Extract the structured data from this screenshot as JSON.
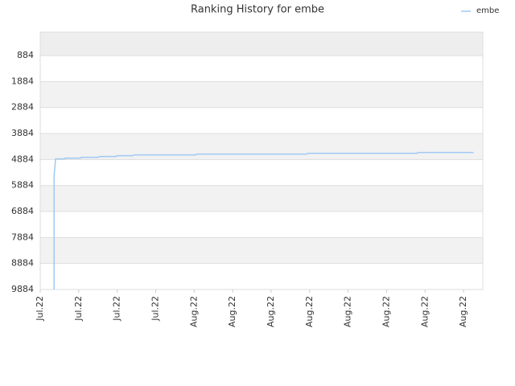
{
  "chart_data": {
    "type": "line",
    "title": "Ranking History for embe",
    "x": [
      0.36,
      0.36,
      0.4,
      0.63,
      0.65,
      1.05,
      1.07,
      1.51,
      1.53,
      1.97,
      1.99,
      2.41,
      2.43,
      4.04,
      4.06,
      6.92,
      6.95,
      9.79,
      9.81,
      11.26
    ],
    "series": [
      {
        "name": "embe",
        "color": "#9fc9f3",
        "values": [
          9884,
          5511,
          4859,
          4859,
          4828,
          4828,
          4797,
          4797,
          4766,
          4766,
          4735,
          4735,
          4704,
          4704,
          4673,
          4673,
          4642,
          4642,
          4611,
          4611
        ]
      }
    ],
    "xlim": [
      0,
      11.5
    ],
    "xticks": [
      {
        "value": 0,
        "label": "Jul.22"
      },
      {
        "value": 1,
        "label": "Jul.22"
      },
      {
        "value": 2,
        "label": "Jul.22"
      },
      {
        "value": 3,
        "label": "Jul.22"
      },
      {
        "value": 4,
        "label": "Aug.22"
      },
      {
        "value": 5,
        "label": "Aug.22"
      },
      {
        "value": 6,
        "label": "Aug.22"
      },
      {
        "value": 7,
        "label": "Aug.22"
      },
      {
        "value": 8,
        "label": "Aug.22"
      },
      {
        "value": 9,
        "label": "Aug.22"
      },
      {
        "value": 10,
        "label": "Aug.22"
      },
      {
        "value": 11,
        "label": "Aug.22"
      }
    ],
    "ylim": [
      -16,
      9884
    ],
    "y_inverted": true,
    "yticks": [
      884,
      1884,
      2884,
      3884,
      4884,
      5884,
      6884,
      7884,
      8884,
      9884
    ],
    "grid": true,
    "legend": "top-right"
  }
}
